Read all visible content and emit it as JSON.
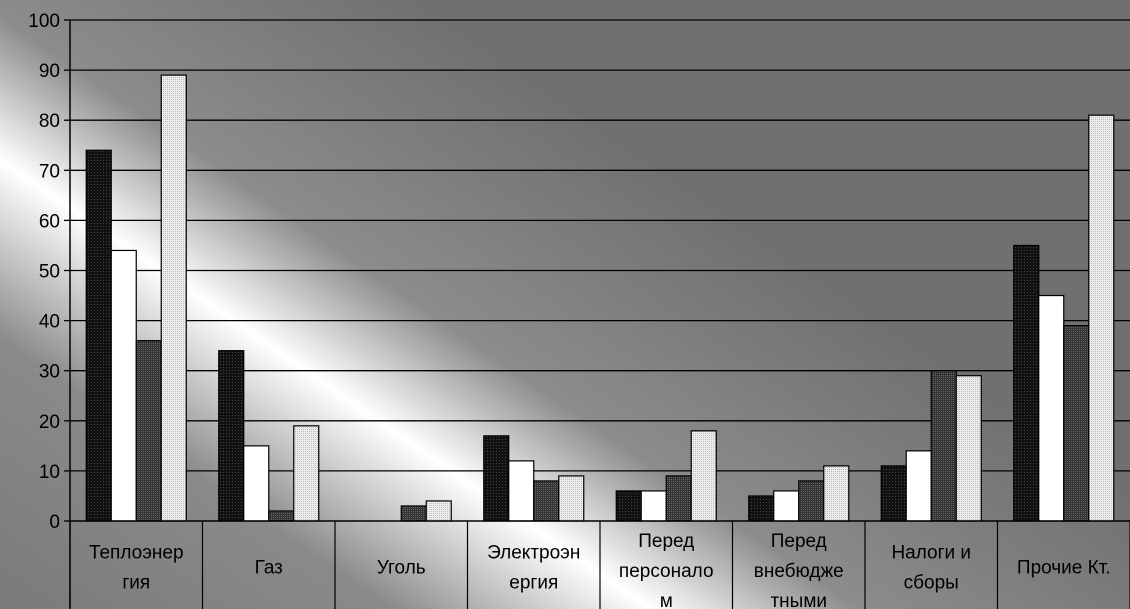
{
  "chart_data": {
    "type": "bar",
    "title": "",
    "xlabel": "",
    "ylabel": "",
    "ylim": [
      0,
      100
    ],
    "yticks": [
      "0",
      "10",
      "20",
      "30",
      "40",
      "50",
      "60",
      "70",
      "80",
      "90",
      "100"
    ],
    "grid": true,
    "legend": "none",
    "categories": [
      [
        "Теплоэнер",
        "гия"
      ],
      [
        "Газ"
      ],
      [
        "Уголь"
      ],
      [
        "Электроэн",
        "ергия"
      ],
      [
        "Перед",
        "персонало",
        "м"
      ],
      [
        "Перед",
        "внебюдже",
        "тными"
      ],
      [
        "Налоги и",
        "сборы"
      ],
      [
        "Прочие Кт."
      ]
    ],
    "series": [
      {
        "values": [
          74,
          34,
          0,
          17,
          6,
          5,
          11,
          55
        ],
        "color": "#141414"
      },
      {
        "values": [
          54,
          15,
          0,
          12,
          6,
          6,
          14,
          45
        ],
        "color": "#ffffff"
      },
      {
        "values": [
          36,
          2,
          3,
          8,
          9,
          8,
          30,
          39
        ],
        "color": "#404040"
      },
      {
        "values": [
          89,
          19,
          4,
          9,
          18,
          11,
          29,
          81
        ],
        "color": "#e4e4e4"
      }
    ]
  }
}
